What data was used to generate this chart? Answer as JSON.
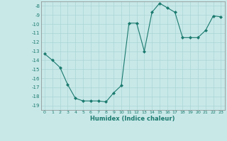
{
  "x": [
    0,
    1,
    2,
    3,
    4,
    5,
    6,
    7,
    8,
    9,
    10,
    11,
    12,
    13,
    14,
    15,
    16,
    17,
    18,
    19,
    20,
    21,
    22,
    23
  ],
  "y": [
    -13.3,
    -14.0,
    -14.8,
    -16.7,
    -18.2,
    -18.5,
    -18.5,
    -18.5,
    -18.6,
    -17.6,
    -16.8,
    -9.9,
    -9.9,
    -13.0,
    -8.7,
    -7.7,
    -8.2,
    -8.7,
    -11.5,
    -11.5,
    -11.5,
    -10.7,
    -9.1,
    -9.2
  ],
  "xlabel": "Humidex (Indice chaleur)",
  "ylim": [
    -19.5,
    -7.5
  ],
  "xlim": [
    -0.5,
    23.5
  ],
  "yticks": [
    -8,
    -9,
    -10,
    -11,
    -12,
    -13,
    -14,
    -15,
    -16,
    -17,
    -18,
    -19
  ],
  "xticks": [
    0,
    1,
    2,
    3,
    4,
    5,
    6,
    7,
    8,
    9,
    10,
    11,
    12,
    13,
    14,
    15,
    16,
    17,
    18,
    19,
    20,
    21,
    22,
    23
  ],
  "line_color": "#1a7a6e",
  "marker_color": "#1a7a6e",
  "bg_color": "#c8e8e8",
  "grid_color": "#aad4d4",
  "grid_minor_color": "#b8dede"
}
